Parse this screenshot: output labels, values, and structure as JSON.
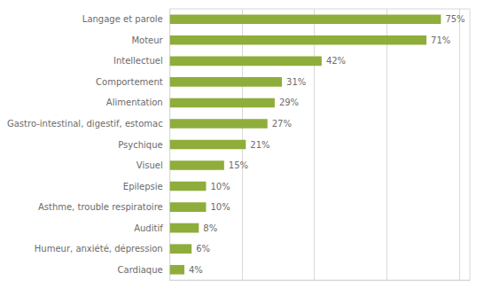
{
  "chart_data": {
    "type": "bar",
    "orientation": "horizontal",
    "categories": [
      "Cardiaque",
      "Humeur, anxiété, dépression",
      "Auditif",
      "Asthme, trouble respiratoire",
      "Epilepsie",
      "Visuel",
      "Psychique",
      "Gastro-intestinal, digestif, estomac",
      "Alimentation",
      "Comportement",
      "Intellectuel",
      "Moteur",
      "Langage et parole"
    ],
    "values": [
      4,
      6,
      8,
      10,
      10,
      15,
      21,
      27,
      29,
      31,
      42,
      71,
      75
    ],
    "value_labels": [
      "4%",
      "6%",
      "8%",
      "10%",
      "10%",
      "15%",
      "21%",
      "27%",
      "29%",
      "31%",
      "42%",
      "71%",
      "75%"
    ],
    "color": "#8fad3b",
    "xlim": [
      0,
      83
    ],
    "xticks": [
      0,
      20,
      40,
      60,
      80
    ],
    "grid": true,
    "data_labels": true,
    "tick_labels": "y"
  }
}
